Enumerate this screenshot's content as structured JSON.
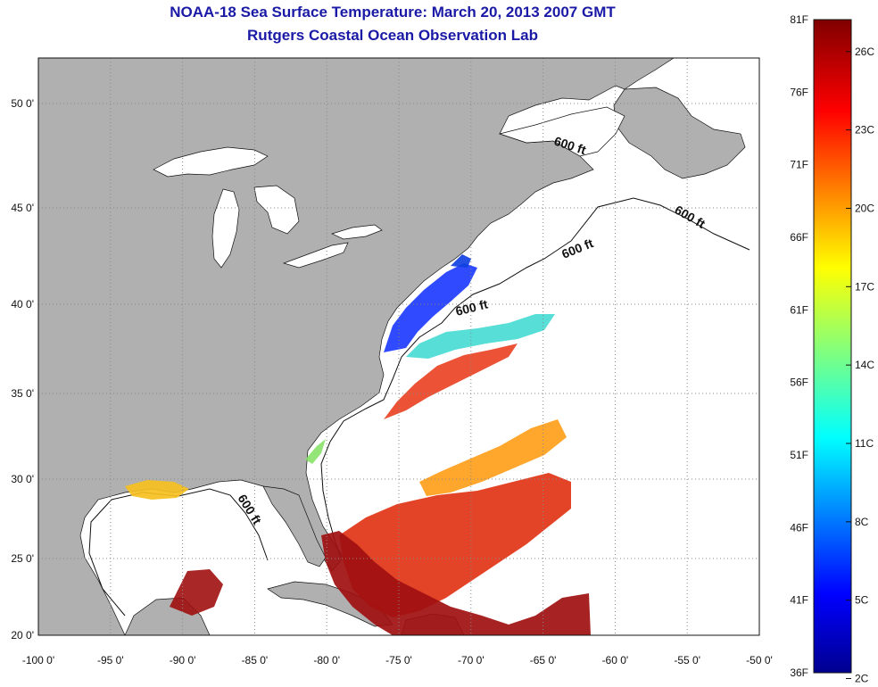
{
  "header": {
    "title": "NOAA-18 Sea Surface Temperature:  March 20, 2013 2007 GMT",
    "subtitle": "Rutgers Coastal Ocean Observation Lab"
  },
  "map": {
    "lon_ticks": [
      "-100 0'",
      "-95 0'",
      "-90 0'",
      "-85 0'",
      "-80 0'",
      "-75 0'",
      "-70 0'",
      "-65 0'",
      "-60 0'",
      "-55 0'",
      "-50 0'"
    ],
    "lat_ticks": [
      "50 0'",
      "45 0'",
      "40 0'",
      "35 0'",
      "30 0'",
      "25 0'",
      "20 0'"
    ],
    "contour_labels": [
      "600 ft",
      "600 ft",
      "600 ft",
      "600 ft",
      "600 ft"
    ],
    "colors": {
      "land": "#b0b0b0",
      "ocean": "#ffffff",
      "grid": "#888888"
    }
  },
  "colorbar": {
    "f_labels": [
      "81F",
      "76F",
      "71F",
      "66F",
      "61F",
      "56F",
      "51F",
      "46F",
      "41F",
      "36F"
    ],
    "c_labels": [
      "26C",
      "23C",
      "20C",
      "17C",
      "14C",
      "11C",
      "8C",
      "5C",
      "2C"
    ]
  }
}
